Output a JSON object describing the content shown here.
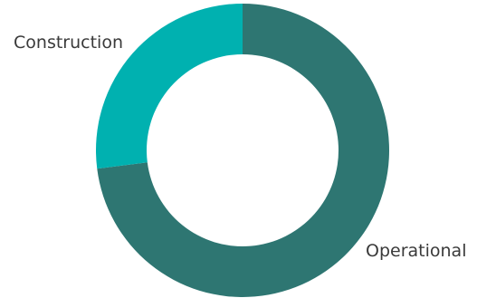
{
  "chart_data": {
    "type": "pie",
    "variant": "donut",
    "title": "",
    "legend": "none",
    "slices": [
      {
        "label": "Operational",
        "value": 73,
        "color": "#2e7672"
      },
      {
        "label": "Construction",
        "value": 27,
        "color": "#00b1b0"
      }
    ]
  }
}
